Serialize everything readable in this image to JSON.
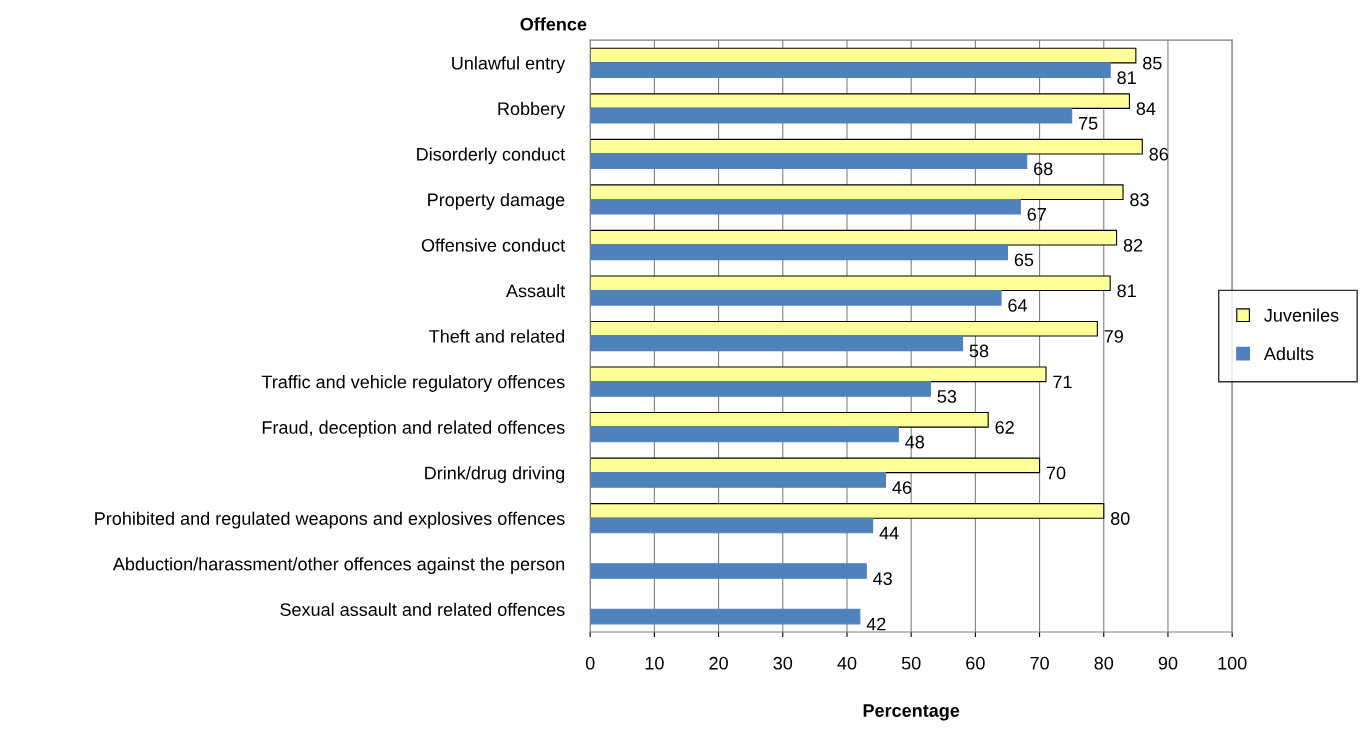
{
  "chart_data": {
    "type": "bar",
    "orientation": "horizontal",
    "xlabel": "Percentage",
    "ylabel": "Offence",
    "categories": [
      "Unlawful entry",
      "Robbery",
      "Disorderly conduct",
      "Property damage",
      "Offensive conduct",
      "Assault",
      "Theft and related",
      "Traffic and vehicle regulatory offences",
      "Fraud, deception and related offences",
      "Drink/drug driving",
      "Prohibited and regulated weapons and explosives offences",
      "Abduction/harassment/other offences against the person",
      "Sexual assault and related offences"
    ],
    "series": [
      {
        "name": "Juveniles",
        "color": "#ffff99",
        "values": [
          85,
          84,
          86,
          83,
          82,
          81,
          79,
          71,
          62,
          70,
          80,
          null,
          null
        ]
      },
      {
        "name": "Adults",
        "color": "#4f81bd",
        "values": [
          81,
          75,
          68,
          67,
          65,
          64,
          58,
          53,
          48,
          46,
          44,
          43,
          42
        ]
      }
    ],
    "xlim": [
      0,
      100
    ],
    "xticks": [
      0,
      10,
      20,
      30,
      40,
      50,
      60,
      70,
      80,
      90,
      100
    ],
    "grid": "x",
    "legend": "right",
    "data_labels": true
  }
}
